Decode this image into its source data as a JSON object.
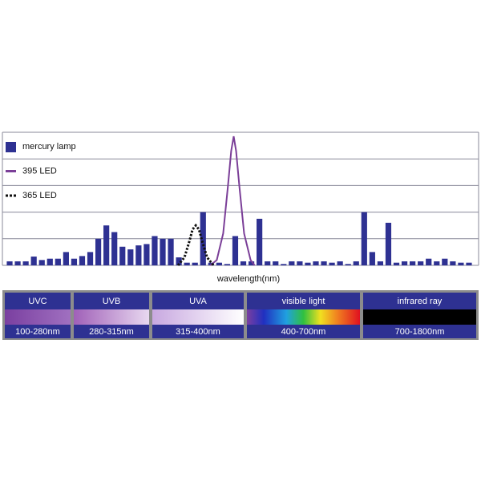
{
  "chart_data": {
    "type": "bar",
    "x_label": "wavelength(nm)",
    "xlim": [
      0.5,
      58.5
    ],
    "ylim": [
      0,
      5
    ],
    "yticks": [
      0,
      1,
      2,
      3,
      4,
      5
    ],
    "grid": true,
    "legend": "top-left",
    "series": [
      {
        "name": "mercury lamp",
        "type": "bar",
        "color": "#2e3192",
        "values": [
          0.15,
          0.15,
          0.15,
          0.33,
          0.2,
          0.25,
          0.25,
          0.5,
          0.25,
          0.35,
          0.5,
          1.0,
          1.5,
          1.25,
          0.7,
          0.6,
          0.75,
          0.8,
          1.1,
          1.0,
          1.0,
          0.3,
          0.1,
          0.1,
          2.0,
          0.1,
          0.1,
          0.05,
          1.1,
          0.15,
          0.15,
          1.75,
          0.15,
          0.15,
          0.05,
          0.15,
          0.15,
          0.1,
          0.15,
          0.15,
          0.1,
          0.15,
          0.05,
          0.15,
          2.0,
          0.5,
          0.15,
          1.6,
          0.1,
          0.15,
          0.15,
          0.15,
          0.25,
          0.15,
          0.25,
          0.15,
          0.1,
          0.1
        ]
      },
      {
        "name": "395 LED",
        "type": "line",
        "color": "#7b3f98",
        "x": [
          25.9,
          26.7,
          27.5,
          28.1,
          28.5,
          28.8,
          29.1,
          29.5,
          30.1,
          30.9,
          31.4
        ],
        "values": [
          0,
          0.2,
          1.2,
          3.0,
          4.3,
          4.85,
          4.3,
          3.0,
          1.2,
          0.2,
          0
        ]
      },
      {
        "name": "365 LED",
        "type": "dotted-line",
        "color": "#111111",
        "x": [
          21.9,
          22.7,
          23.3,
          23.7,
          24.1,
          24.5,
          24.9,
          25.5,
          26.3
        ],
        "values": [
          0,
          0.3,
          0.9,
          1.35,
          1.5,
          1.35,
          0.9,
          0.3,
          0
        ]
      }
    ]
  },
  "spectrum_bands": [
    {
      "name": "UVC",
      "range": "100-280nm"
    },
    {
      "name": "UVB",
      "range": "280-315nm"
    },
    {
      "name": "UVA",
      "range": "315-400nm"
    },
    {
      "name": "visible light",
      "range": "400-700nm"
    },
    {
      "name": "infrared ray",
      "range": "700-1800nm"
    }
  ]
}
